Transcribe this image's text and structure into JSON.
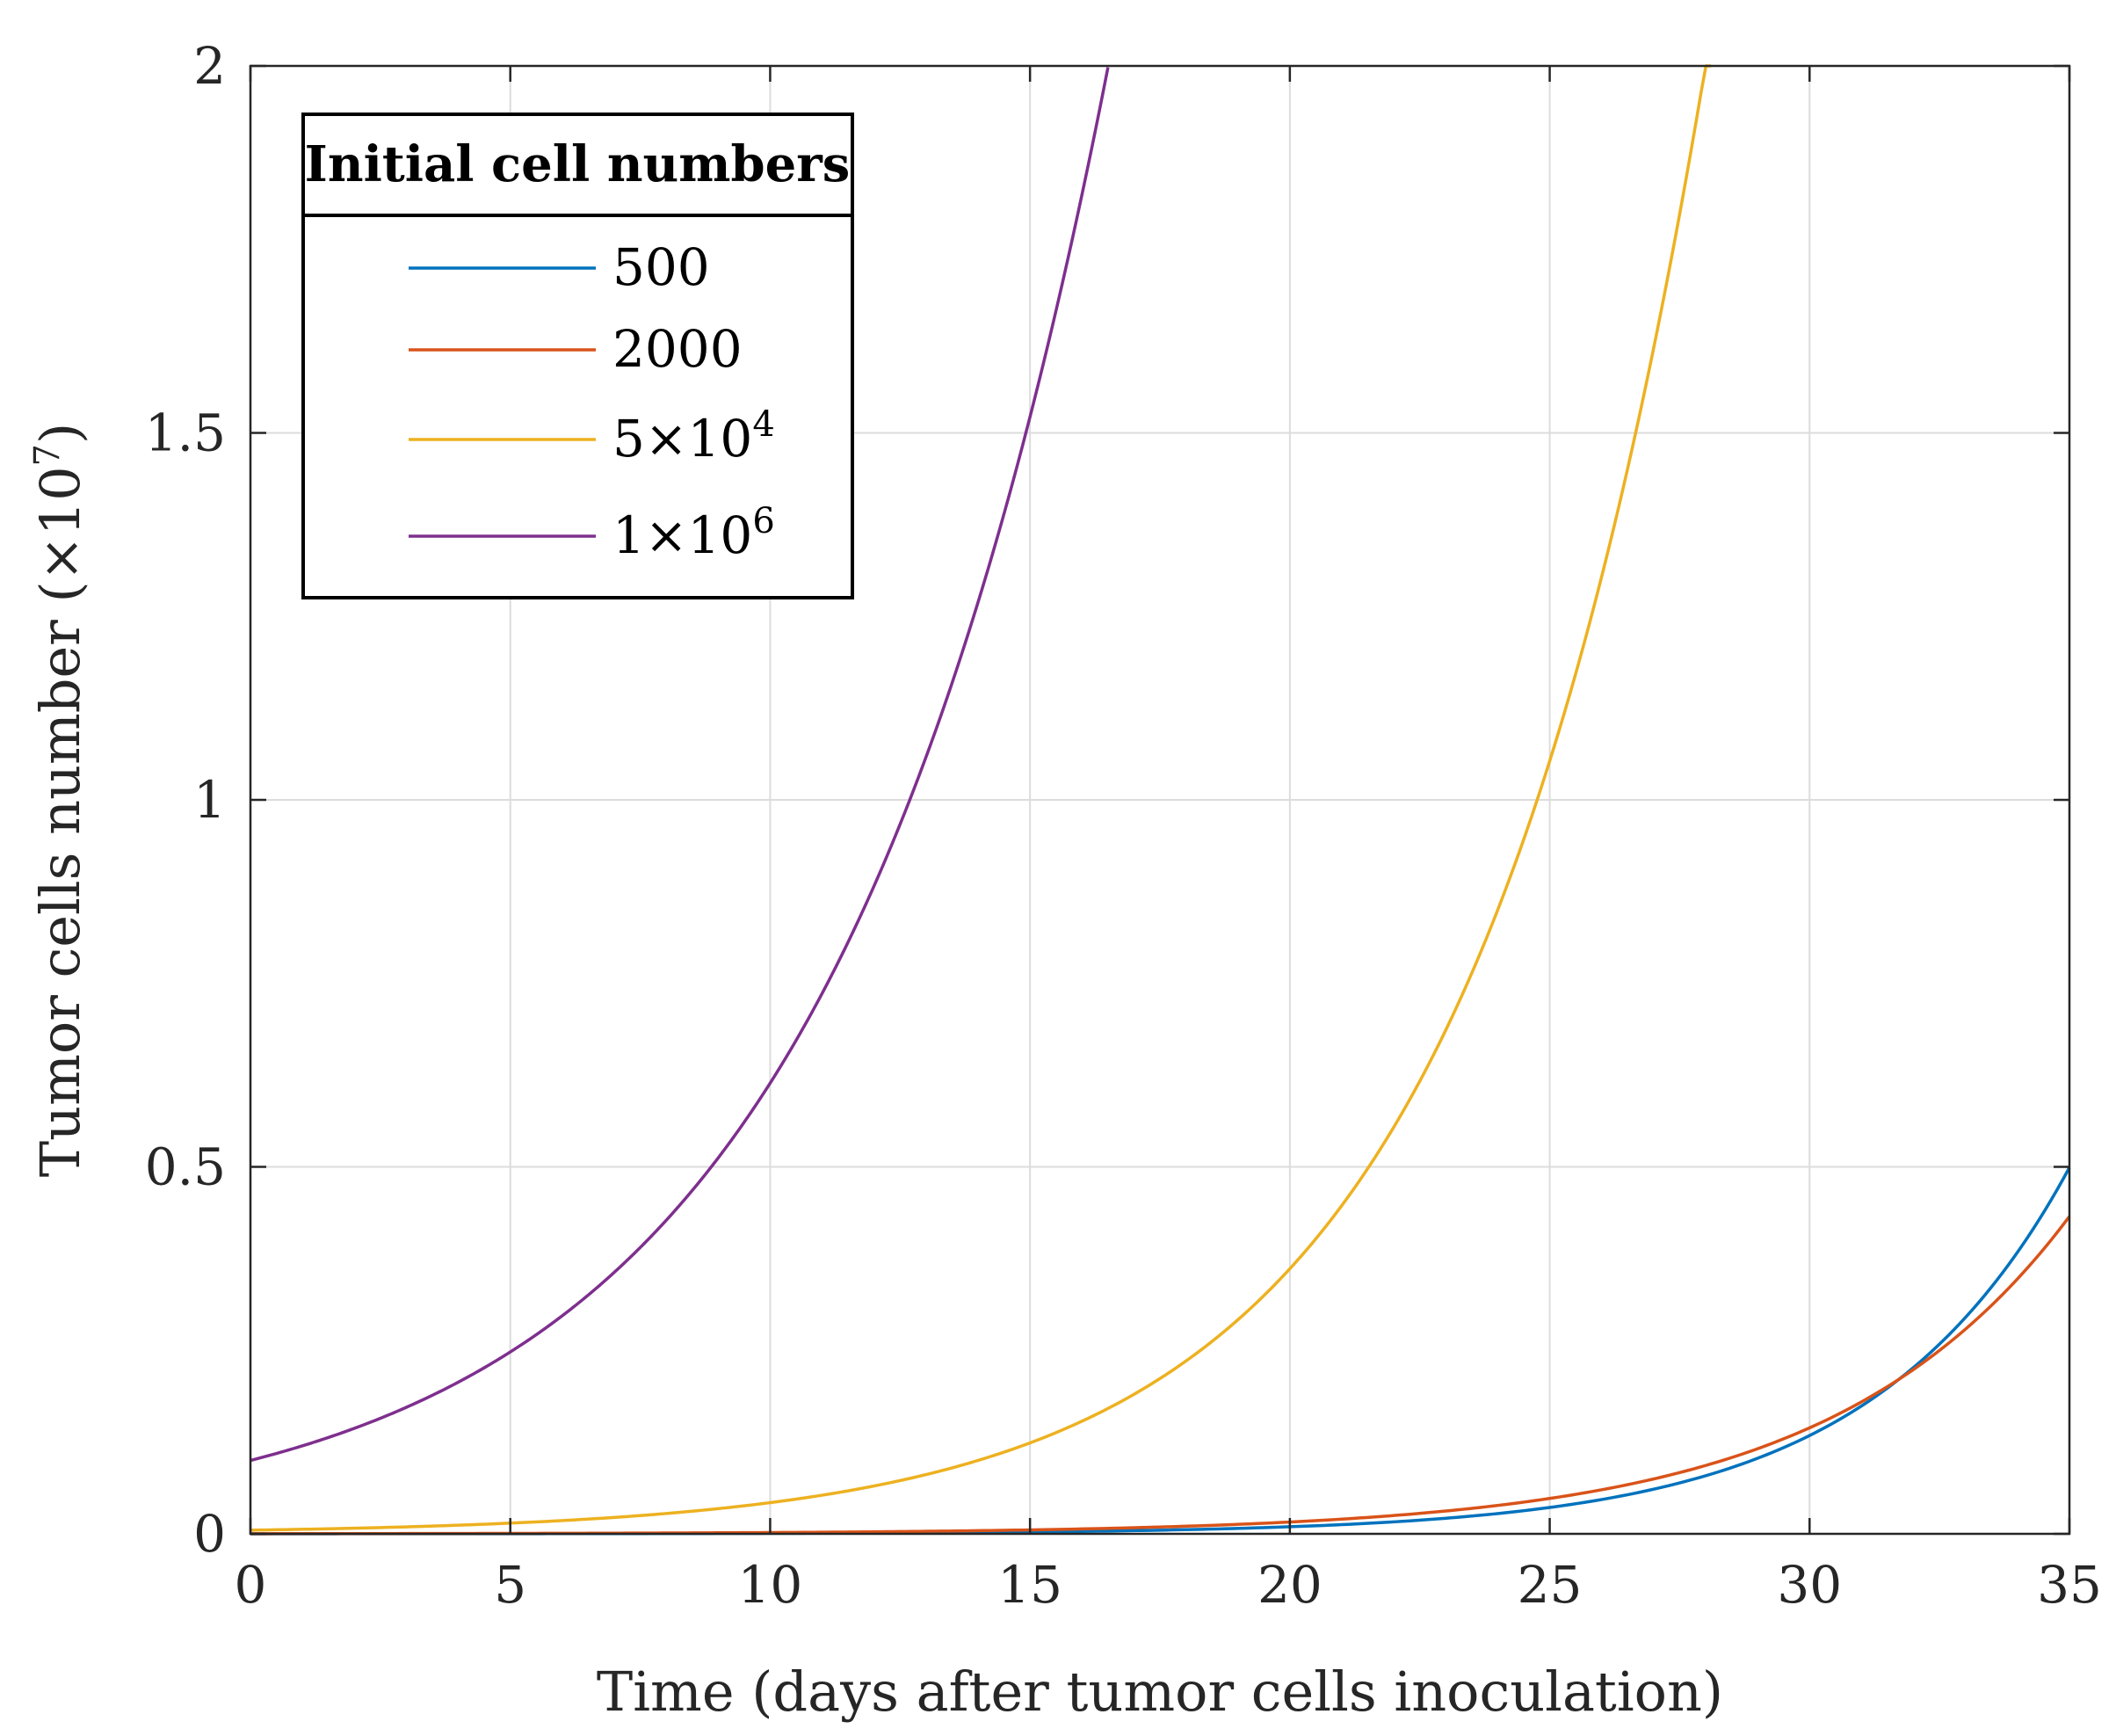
{
  "chart_data": {
    "type": "line",
    "title": "",
    "xlabel": "Time (days after tumor cells inoculation)",
    "ylabel_main": "Tumor cells number (×10",
    "ylabel_exp": "7",
    "ylabel_close": ")",
    "xlim": [
      0,
      35
    ],
    "ylim": [
      0,
      2
    ],
    "grid": true,
    "xticks": [
      0,
      5,
      10,
      15,
      20,
      25,
      30,
      35
    ],
    "xtick_labels": [
      "0",
      "5",
      "10",
      "15",
      "20",
      "25",
      "30",
      "35"
    ],
    "yticks": [
      0,
      0.5,
      1,
      1.5,
      2
    ],
    "ytick_labels": [
      "0",
      "0.5",
      "1",
      "1.5",
      "2"
    ],
    "legend": {
      "title": "Initial cell numbers",
      "placement": "top-left",
      "entries": [
        {
          "label": "500",
          "exp": ""
        },
        {
          "label": "2000",
          "exp": ""
        },
        {
          "label": "5×10",
          "exp": "4"
        },
        {
          "label": "1×10",
          "exp": "6"
        }
      ]
    },
    "series": [
      {
        "name": "500",
        "color": "#0072bd",
        "initial": 5e-05,
        "growth_rate": 0.2631,
        "t_max": 35
      },
      {
        "name": "2000",
        "color": "#d95319",
        "initial": 0.0002,
        "growth_rate": 0.2194,
        "t_max": 35
      },
      {
        "name": "5×10^4",
        "color": "#edb120",
        "initial": 0.005,
        "growth_rate": 0.214,
        "t_max": 28.1
      },
      {
        "name": "1×10^6",
        "color": "#7e2f8e",
        "initial": 0.1,
        "growth_rate": 0.1815,
        "t_max": 16.5
      }
    ]
  }
}
